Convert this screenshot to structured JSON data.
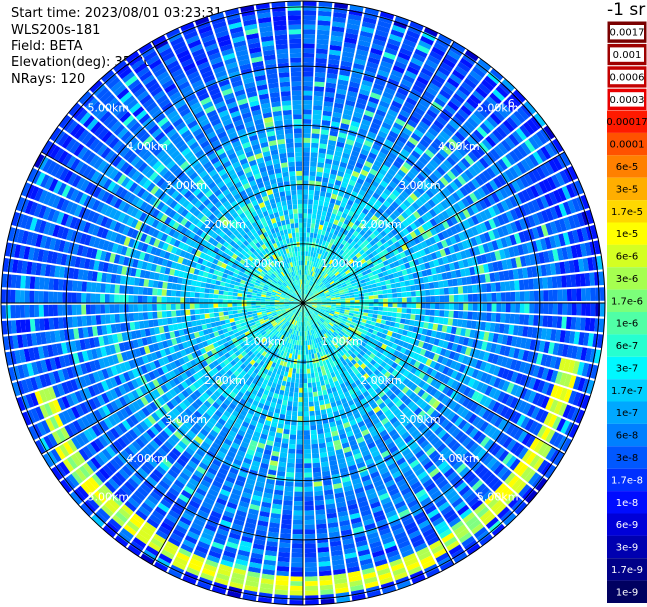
{
  "header": {
    "start_time": "Start time: 2023/08/01 03:23:31",
    "device": "WLS200s-181",
    "field": "Field: BETA",
    "elevation": "Elevation(deg): 35.30",
    "nrays": "NRays: 120"
  },
  "chart_data": {
    "type": "heatmap",
    "projection": "polar-ppi",
    "colorbar_title": "-1 sr",
    "ring_labels": [
      "1.00km",
      "2.00km",
      "3.00km",
      "4.00km",
      "5.00km",
      "6."
    ],
    "ring_ranges_km": [
      1,
      2,
      3,
      4,
      5,
      6
    ],
    "max_range_km": 5.1,
    "spoke_count": 12,
    "nrays": 120,
    "colorbar": [
      {
        "label": "0.0017",
        "color": "#7a0000"
      },
      {
        "label": "0.001",
        "color": "#9e0000"
      },
      {
        "label": "0.0006",
        "color": "#c40000"
      },
      {
        "label": "0.0003",
        "color": "#e80000"
      },
      {
        "label": "0.00017",
        "color": "#ff1a00"
      },
      {
        "label": "0.0001",
        "color": "#ff5200"
      },
      {
        "label": "6e-5",
        "color": "#ff8000"
      },
      {
        "label": "3e-5",
        "color": "#ffae00"
      },
      {
        "label": "1.7e-5",
        "color": "#ffd800"
      },
      {
        "label": "1e-5",
        "color": "#ffff00"
      },
      {
        "label": "6e-6",
        "color": "#d4ff22"
      },
      {
        "label": "3e-6",
        "color": "#a6ff50"
      },
      {
        "label": "1.7e-6",
        "color": "#7cff7a"
      },
      {
        "label": "1e-6",
        "color": "#50ffa6"
      },
      {
        "label": "6e-7",
        "color": "#26ffd0"
      },
      {
        "label": "3e-7",
        "color": "#00f8ff"
      },
      {
        "label": "1.7e-7",
        "color": "#00d0ff"
      },
      {
        "label": "1e-7",
        "color": "#00a8ff"
      },
      {
        "label": "6e-8",
        "color": "#0080ff"
      },
      {
        "label": "3e-8",
        "color": "#0058ff"
      },
      {
        "label": "1.7e-8",
        "color": "#0030ff"
      },
      {
        "label": "1e-8",
        "color": "#000cff"
      },
      {
        "label": "6e-9",
        "color": "#0000d8"
      },
      {
        "label": "3e-9",
        "color": "#0000b0"
      },
      {
        "label": "1.7e-9",
        "color": "#000088"
      },
      {
        "label": "1e-9",
        "color": "#000060"
      }
    ]
  }
}
